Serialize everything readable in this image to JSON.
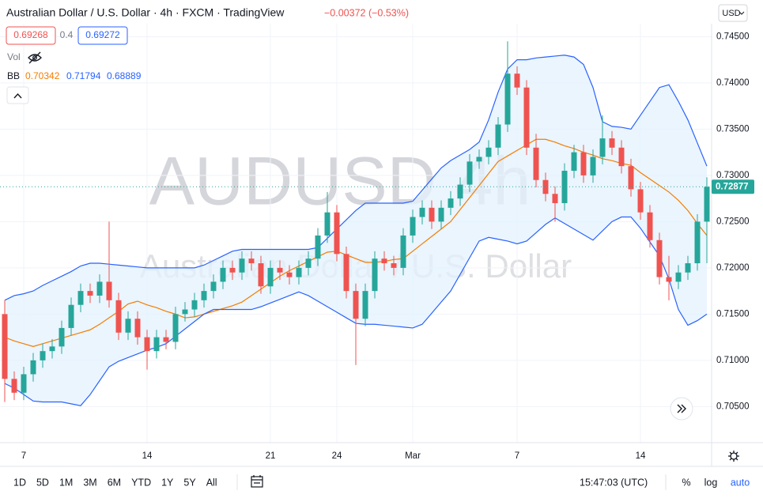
{
  "header": {
    "title": "Australian Dollar / U.S. Dollar · 4h · FXCM · TradingView",
    "change": "−0.00372 (−0.53%)",
    "bid": "0.69268",
    "spread": "0.4",
    "ask": "0.69272",
    "volume_label": "Vol",
    "currency": "USD"
  },
  "watermark": {
    "symbol": "AUDUSD 4h",
    "name": "Australian Dollar / U.S. Dollar"
  },
  "toolbar": {
    "ranges": [
      "1D",
      "5D",
      "1M",
      "3M",
      "6M",
      "YTD",
      "1Y",
      "5Y",
      "All"
    ],
    "time": "15:47:03 (UTC)",
    "percent": "%",
    "log": "log",
    "auto": "auto"
  },
  "chart_data": {
    "type": "candlestick",
    "up_color": "#26a69a",
    "down_color": "#ef5350",
    "grid": true,
    "ylim": [
      0.7011,
      0.7464
    ],
    "yticks": [
      {
        "value": 0.705,
        "label": "0.70500"
      },
      {
        "value": 0.71,
        "label": "0.71000"
      },
      {
        "value": 0.715,
        "label": "0.71500"
      },
      {
        "value": 0.72,
        "label": "0.72000"
      },
      {
        "value": 0.725,
        "label": "0.72500"
      },
      {
        "value": 0.73,
        "label": "0.73000"
      },
      {
        "value": 0.735,
        "label": "0.73500"
      },
      {
        "value": 0.74,
        "label": "0.74000"
      },
      {
        "value": 0.745,
        "label": "0.74500"
      }
    ],
    "categories": [
      null,
      null,
      "7",
      null,
      null,
      null,
      null,
      null,
      null,
      null,
      null,
      null,
      null,
      null,
      null,
      "14",
      null,
      null,
      null,
      null,
      null,
      null,
      null,
      null,
      null,
      null,
      null,
      null,
      "21",
      null,
      null,
      null,
      null,
      null,
      null,
      "24",
      null,
      null,
      null,
      null,
      null,
      null,
      null,
      "Mar",
      null,
      null,
      null,
      null,
      null,
      null,
      null,
      null,
      null,
      null,
      "7",
      null,
      null,
      null,
      null,
      null,
      null,
      null,
      null,
      null,
      null,
      null,
      null,
      "14",
      null,
      null,
      null,
      null,
      null,
      null,
      null
    ],
    "open": [
      0.715,
      0.708,
      0.7065,
      0.7085,
      0.71,
      0.711,
      0.7115,
      0.7135,
      0.716,
      0.7175,
      0.717,
      0.7185,
      0.7165,
      0.713,
      0.7145,
      0.7125,
      0.711,
      0.7125,
      0.712,
      0.715,
      0.7155,
      0.7165,
      0.7175,
      0.7185,
      0.72,
      0.7195,
      0.721,
      0.7205,
      0.718,
      0.72,
      0.7195,
      0.719,
      0.72,
      0.721,
      0.7235,
      0.726,
      0.7215,
      0.7175,
      0.7145,
      0.7175,
      0.721,
      0.7205,
      0.72,
      0.7235,
      0.7255,
      0.7265,
      0.725,
      0.7265,
      0.7275,
      0.729,
      0.7315,
      0.732,
      0.733,
      0.7355,
      0.741,
      0.7395,
      0.733,
      0.7295,
      0.728,
      0.727,
      0.7305,
      0.7325,
      0.73,
      0.732,
      0.734,
      0.733,
      0.731,
      0.7285,
      0.726,
      0.723,
      0.719,
      0.7185,
      0.7195,
      0.7205,
      0.725
    ],
    "high": [
      0.7165,
      0.7088,
      0.7093,
      0.7108,
      0.7118,
      0.7123,
      0.7143,
      0.7168,
      0.7183,
      0.7183,
      0.7193,
      0.725,
      0.7173,
      0.7153,
      0.7153,
      0.7133,
      0.7133,
      0.7133,
      0.7158,
      0.7163,
      0.7173,
      0.7183,
      0.7193,
      0.7208,
      0.7208,
      0.7218,
      0.7218,
      0.7213,
      0.7208,
      0.7208,
      0.7203,
      0.7208,
      0.7218,
      0.7243,
      0.7282,
      0.7268,
      0.7223,
      0.7183,
      0.7183,
      0.7218,
      0.7218,
      0.7213,
      0.7243,
      0.7263,
      0.7273,
      0.7273,
      0.7273,
      0.7283,
      0.7298,
      0.7323,
      0.7328,
      0.7338,
      0.7363,
      0.7445,
      0.7418,
      0.7403,
      0.7345,
      0.7303,
      0.7288,
      0.7313,
      0.7333,
      0.7333,
      0.7328,
      0.7365,
      0.7348,
      0.7338,
      0.7318,
      0.7293,
      0.7268,
      0.7238,
      0.7213,
      0.7203,
      0.7213,
      0.7258,
      0.7298
    ],
    "low": [
      0.7055,
      0.7057,
      0.7057,
      0.7077,
      0.7092,
      0.7102,
      0.7107,
      0.7127,
      0.7152,
      0.7162,
      0.7162,
      0.7157,
      0.7122,
      0.7122,
      0.7117,
      0.709,
      0.7102,
      0.7112,
      0.7112,
      0.7142,
      0.7147,
      0.7157,
      0.7167,
      0.7177,
      0.7187,
      0.7187,
      0.7197,
      0.7172,
      0.7172,
      0.7187,
      0.7182,
      0.7182,
      0.7192,
      0.7202,
      0.7227,
      0.7207,
      0.7167,
      0.7095,
      0.7137,
      0.7167,
      0.7197,
      0.7192,
      0.7192,
      0.7227,
      0.7247,
      0.7242,
      0.7242,
      0.7257,
      0.7267,
      0.7282,
      0.7307,
      0.7312,
      0.7322,
      0.7347,
      0.7387,
      0.7322,
      0.7287,
      0.7272,
      0.725,
      0.7262,
      0.7297,
      0.7292,
      0.7292,
      0.7312,
      0.7322,
      0.7302,
      0.7277,
      0.7252,
      0.7222,
      0.7182,
      0.7165,
      0.7177,
      0.7187,
      0.7197,
      0.7205
    ],
    "close": [
      0.708,
      0.7065,
      0.7085,
      0.71,
      0.711,
      0.7115,
      0.7135,
      0.716,
      0.7175,
      0.717,
      0.7185,
      0.7165,
      0.713,
      0.7145,
      0.7125,
      0.711,
      0.7125,
      0.712,
      0.715,
      0.7155,
      0.7165,
      0.7175,
      0.7185,
      0.72,
      0.7195,
      0.721,
      0.7205,
      0.718,
      0.72,
      0.7195,
      0.719,
      0.72,
      0.721,
      0.7235,
      0.726,
      0.7215,
      0.7175,
      0.7145,
      0.7175,
      0.721,
      0.7205,
      0.72,
      0.7235,
      0.7255,
      0.7265,
      0.725,
      0.7265,
      0.7275,
      0.729,
      0.7315,
      0.732,
      0.733,
      0.7355,
      0.741,
      0.7395,
      0.733,
      0.7295,
      0.728,
      0.727,
      0.7305,
      0.7325,
      0.73,
      0.732,
      0.734,
      0.733,
      0.731,
      0.7285,
      0.726,
      0.723,
      0.719,
      0.7185,
      0.7195,
      0.7205,
      0.725,
      0.72877
    ],
    "bollinger": {
      "label": "BB",
      "legend_values": [
        0.70342,
        0.71794,
        0.68889
      ],
      "fill": "#e3f2fd",
      "series": [
        {
          "color": "#f57c00",
          "values": [
            0.7125,
            0.7121,
            0.7118,
            0.7115,
            0.7118,
            0.7121,
            0.7124,
            0.7127,
            0.713,
            0.7133,
            0.7139,
            0.7146,
            0.7153,
            0.7161,
            0.7164,
            0.716,
            0.7157,
            0.7153,
            0.715,
            0.7146,
            0.7147,
            0.715,
            0.7153,
            0.7156,
            0.7159,
            0.7163,
            0.717,
            0.7177,
            0.7184,
            0.7191,
            0.7197,
            0.7202,
            0.7207,
            0.7212,
            0.7217,
            0.7218,
            0.7214,
            0.721,
            0.7206,
            0.7206,
            0.7207,
            0.7209,
            0.721,
            0.7218,
            0.7226,
            0.7234,
            0.7242,
            0.725,
            0.7263,
            0.7276,
            0.7289,
            0.7302,
            0.7315,
            0.7321,
            0.7327,
            0.7333,
            0.7339,
            0.7339,
            0.7336,
            0.7332,
            0.7329,
            0.7325,
            0.7322,
            0.7318,
            0.7316,
            0.7313,
            0.7311,
            0.7303,
            0.7296,
            0.7289,
            0.7282,
            0.7273,
            0.7262,
            0.7248,
            0.7235
          ]
        },
        {
          "color": "#2962ff",
          "values": [
            0.7165,
            0.717,
            0.7172,
            0.7175,
            0.7181,
            0.7186,
            0.7191,
            0.7196,
            0.7202,
            0.7205,
            0.7205,
            0.7204,
            0.7203,
            0.7202,
            0.7201,
            0.72,
            0.72,
            0.72,
            0.72,
            0.72,
            0.72,
            0.7203,
            0.7208,
            0.7213,
            0.7218,
            0.722,
            0.722,
            0.722,
            0.722,
            0.722,
            0.722,
            0.722,
            0.722,
            0.7222,
            0.7232,
            0.7242,
            0.7252,
            0.7262,
            0.727,
            0.727,
            0.727,
            0.727,
            0.727,
            0.7272,
            0.7284,
            0.7296,
            0.7308,
            0.7316,
            0.7322,
            0.7328,
            0.7336,
            0.736,
            0.739,
            0.7415,
            0.7425,
            0.7425,
            0.7427,
            0.7428,
            0.7429,
            0.743,
            0.7428,
            0.742,
            0.7395,
            0.7358,
            0.7353,
            0.7352,
            0.735,
            0.7365,
            0.738,
            0.7395,
            0.7398,
            0.738,
            0.736,
            0.7335,
            0.731
          ]
        },
        {
          "color": "#2962ff",
          "values": [
            0.7075,
            0.707,
            0.7063,
            0.7056,
            0.7055,
            0.7055,
            0.7055,
            0.7053,
            0.7051,
            0.7063,
            0.7078,
            0.7093,
            0.7099,
            0.7103,
            0.7107,
            0.7111,
            0.7114,
            0.7118,
            0.7126,
            0.7134,
            0.7142,
            0.715,
            0.7155,
            0.7155,
            0.7155,
            0.7155,
            0.7155,
            0.7158,
            0.7162,
            0.7166,
            0.717,
            0.7174,
            0.717,
            0.7164,
            0.7158,
            0.7152,
            0.7146,
            0.714,
            0.7139,
            0.7139,
            0.7138,
            0.7137,
            0.7136,
            0.7135,
            0.7139,
            0.7151,
            0.7163,
            0.7175,
            0.7193,
            0.7211,
            0.7229,
            0.7233,
            0.7231,
            0.7229,
            0.7226,
            0.7229,
            0.7238,
            0.7247,
            0.7254,
            0.7248,
            0.7242,
            0.7236,
            0.723,
            0.724,
            0.725,
            0.7255,
            0.7255,
            0.7243,
            0.7228,
            0.7213,
            0.7188,
            0.7155,
            0.7138,
            0.7143,
            0.715
          ]
        }
      ]
    }
  }
}
